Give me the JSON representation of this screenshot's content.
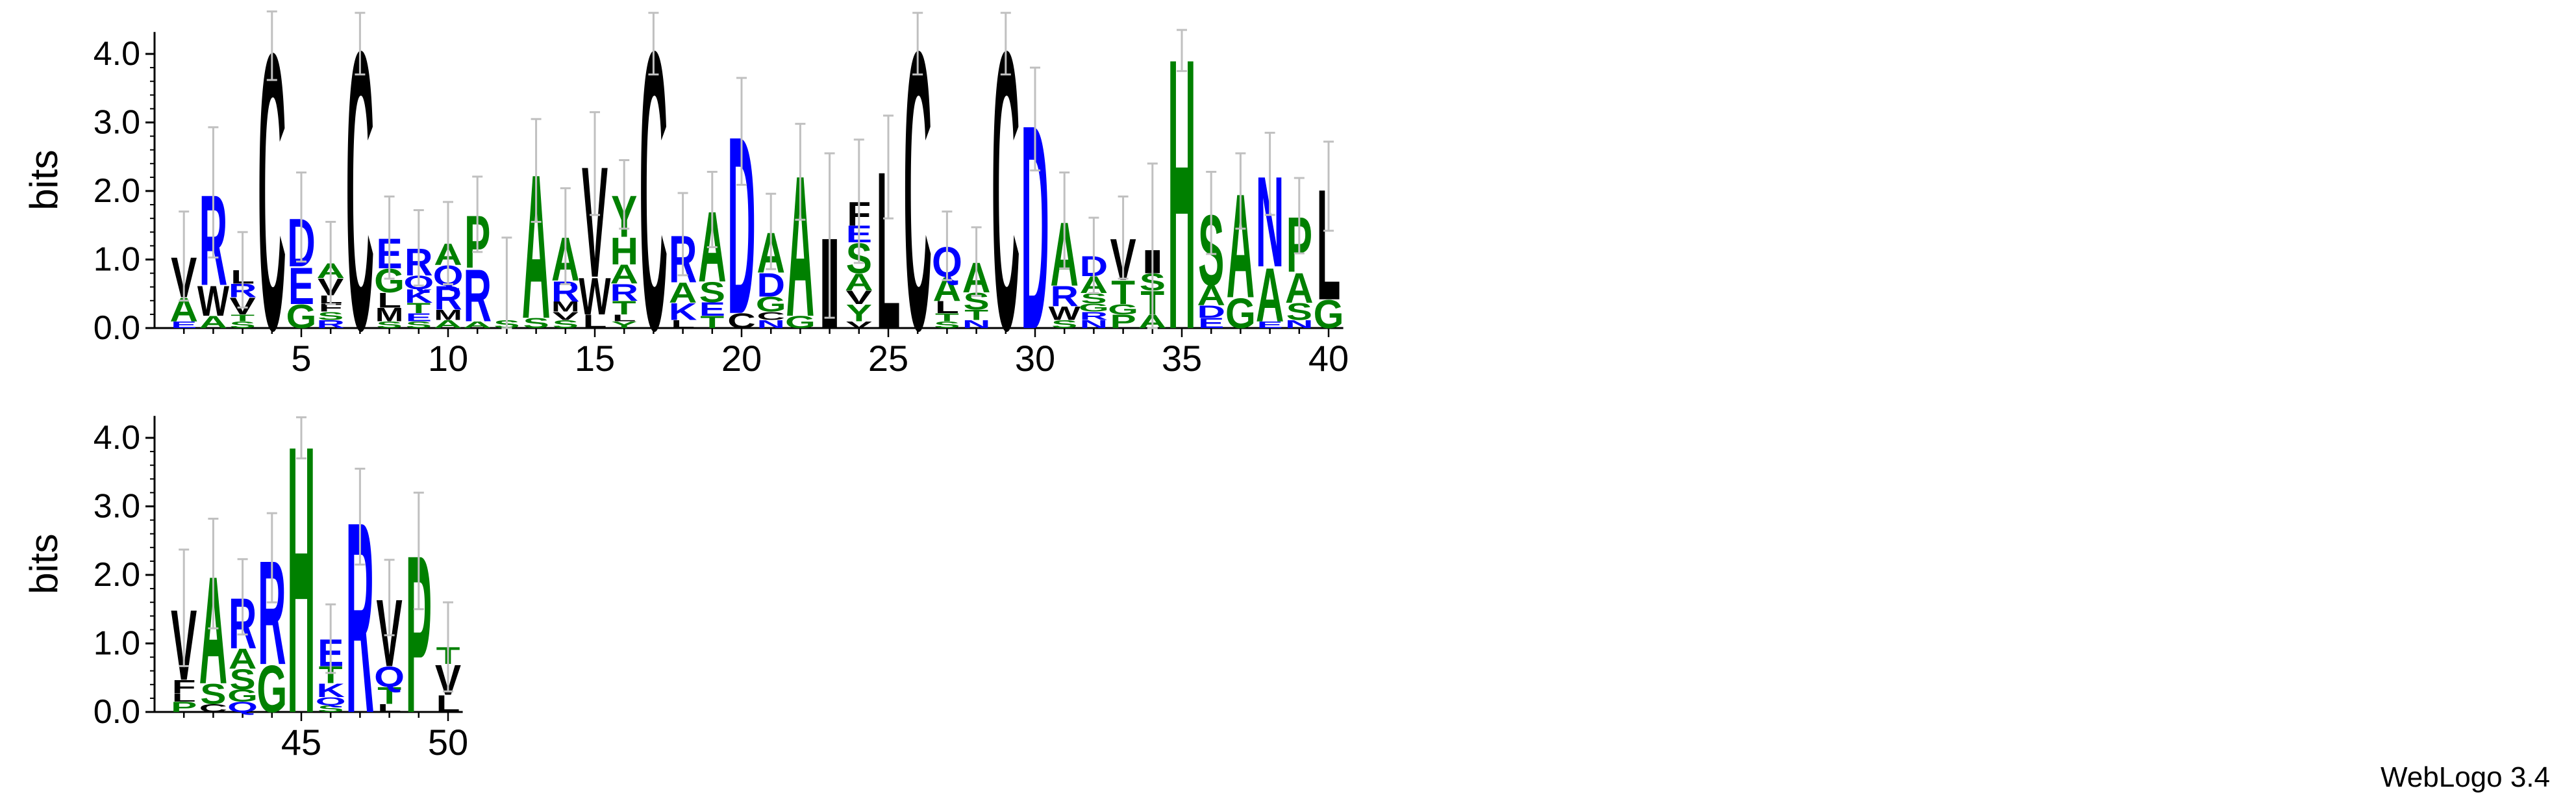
{
  "chart_data": {
    "type": "sequence_logo",
    "ylabel": "bits",
    "ylim": [
      0,
      4.32
    ],
    "yticks": [
      "0.0",
      "1.0",
      "2.0",
      "3.0",
      "4.0"
    ],
    "xticks_row1": [
      5,
      10,
      15,
      20,
      25,
      30,
      35,
      40
    ],
    "xticks_row2": [
      45,
      50
    ],
    "rows": [
      [
        1,
        40
      ],
      [
        41,
        50
      ]
    ],
    "colors": {
      "polar": "#008000",
      "basic": "#0000ff",
      "acidic": "#0000ff",
      "hydrophobic": "#000000",
      "neutral": "#000000"
    },
    "residue_colors": {
      "A": "#008000",
      "G": "#008000",
      "S": "#008000",
      "T": "#008000",
      "H": "#008000",
      "P": "#008000",
      "Y": "#008000",
      "R": "#0000ff",
      "K": "#0000ff",
      "D": "#0000ff",
      "E": "#0000ff",
      "Q": "#0000ff",
      "N": "#0000ff",
      "C": "#000000",
      "L": "#000000",
      "V": "#000000",
      "I": "#000000",
      "M": "#000000",
      "F": "#000000",
      "W": "#000000"
    },
    "positions": [
      {
        "pos": 1,
        "err": 0.65,
        "letters": [
          {
            "aa": "E",
            "h": 0.1
          },
          {
            "aa": "A",
            "h": 0.35
          },
          {
            "aa": "V",
            "h": 0.6
          }
        ]
      },
      {
        "pos": 2,
        "err": 0.95,
        "letters": [
          {
            "aa": "A",
            "h": 0.18
          },
          {
            "aa": "W",
            "h": 0.45
          },
          {
            "aa": "R",
            "h": 1.35
          }
        ]
      },
      {
        "pos": 3,
        "err": 0.55,
        "letters": [
          {
            "aa": "S",
            "h": 0.1
          },
          {
            "aa": "T",
            "h": 0.1
          },
          {
            "aa": "V",
            "h": 0.25
          },
          {
            "aa": "R",
            "h": 0.2
          },
          {
            "aa": "L",
            "h": 0.2
          }
        ]
      },
      {
        "pos": 4,
        "err": 0.5,
        "letters": [
          {
            "aa": "C",
            "h": 4.12
          }
        ]
      },
      {
        "pos": 5,
        "err": 0.65,
        "letters": [
          {
            "aa": "G",
            "h": 0.35
          },
          {
            "aa": "E",
            "h": 0.55
          },
          {
            "aa": "D",
            "h": 0.72
          }
        ]
      },
      {
        "pos": 6,
        "err": 0.6,
        "letters": [
          {
            "aa": "R",
            "h": 0.12
          },
          {
            "aa": "S",
            "h": 0.12
          },
          {
            "aa": "F",
            "h": 0.12
          },
          {
            "aa": "L",
            "h": 0.12
          },
          {
            "aa": "V",
            "h": 0.25
          },
          {
            "aa": "A",
            "h": 0.22
          }
        ]
      },
      {
        "pos": 7,
        "err": 0.45,
        "letters": [
          {
            "aa": "C",
            "h": 4.15
          }
        ]
      },
      {
        "pos": 8,
        "err": 0.6,
        "letters": [
          {
            "aa": "S",
            "h": 0.1
          },
          {
            "aa": "M",
            "h": 0.2
          },
          {
            "aa": "L",
            "h": 0.22
          },
          {
            "aa": "G",
            "h": 0.35
          },
          {
            "aa": "E",
            "h": 0.45
          }
        ]
      },
      {
        "pos": 9,
        "err": 0.55,
        "letters": [
          {
            "aa": "S",
            "h": 0.1
          },
          {
            "aa": "E",
            "h": 0.12
          },
          {
            "aa": "T",
            "h": 0.15
          },
          {
            "aa": "K",
            "h": 0.2
          },
          {
            "aa": "Q",
            "h": 0.2
          },
          {
            "aa": "R",
            "h": 0.4
          }
        ]
      },
      {
        "pos": 10,
        "err": 0.6,
        "letters": [
          {
            "aa": "A",
            "h": 0.12
          },
          {
            "aa": "M",
            "h": 0.15
          },
          {
            "aa": "R",
            "h": 0.35
          },
          {
            "aa": "Q",
            "h": 0.3
          },
          {
            "aa": "A",
            "h": 0.32
          }
        ]
      },
      {
        "pos": 11,
        "err": 0.55,
        "letters": [
          {
            "aa": "A",
            "h": 0.1
          },
          {
            "aa": "R",
            "h": 0.78
          },
          {
            "aa": "P",
            "h": 0.78
          }
        ]
      },
      {
        "pos": 12,
        "err": 1.2,
        "letters": [
          {
            "aa": "S",
            "h": 0.12
          }
        ]
      },
      {
        "pos": 13,
        "err": 0.75,
        "letters": [
          {
            "aa": "S",
            "h": 0.15
          },
          {
            "aa": "A",
            "h": 2.15
          }
        ]
      },
      {
        "pos": 14,
        "err": 0.7,
        "letters": [
          {
            "aa": "S",
            "h": 0.12
          },
          {
            "aa": "V",
            "h": 0.12
          },
          {
            "aa": "M",
            "h": 0.15
          },
          {
            "aa": "R",
            "h": 0.3
          },
          {
            "aa": "A",
            "h": 0.65
          }
        ]
      },
      {
        "pos": 15,
        "err": 0.75,
        "letters": [
          {
            "aa": "L",
            "h": 0.2
          },
          {
            "aa": "W",
            "h": 0.55
          },
          {
            "aa": "V",
            "h": 1.65
          }
        ]
      },
      {
        "pos": 16,
        "err": 0.5,
        "letters": [
          {
            "aa": "Y",
            "h": 0.1
          },
          {
            "aa": "L",
            "h": 0.1
          },
          {
            "aa": "T",
            "h": 0.2
          },
          {
            "aa": "R",
            "h": 0.25
          },
          {
            "aa": "A",
            "h": 0.28
          },
          {
            "aa": "H",
            "h": 0.4
          },
          {
            "aa": "Y",
            "h": 0.62
          }
        ]
      },
      {
        "pos": 17,
        "err": 0.45,
        "letters": [
          {
            "aa": "C",
            "h": 4.15
          }
        ]
      },
      {
        "pos": 18,
        "err": 0.6,
        "letters": [
          {
            "aa": "L",
            "h": 0.12
          },
          {
            "aa": "K",
            "h": 0.25
          },
          {
            "aa": "A",
            "h": 0.3
          },
          {
            "aa": "R",
            "h": 0.7
          }
        ]
      },
      {
        "pos": 19,
        "err": 0.55,
        "letters": [
          {
            "aa": "T",
            "h": 0.18
          },
          {
            "aa": "E",
            "h": 0.2
          },
          {
            "aa": "S",
            "h": 0.3
          },
          {
            "aa": "A",
            "h": 1.05
          }
        ]
      },
      {
        "pos": 20,
        "err": 0.78,
        "letters": [
          {
            "aa": "C",
            "h": 0.22
          },
          {
            "aa": "D",
            "h": 2.65
          }
        ]
      },
      {
        "pos": 21,
        "err": 0.55,
        "letters": [
          {
            "aa": "N",
            "h": 0.12
          },
          {
            "aa": "C",
            "h": 0.12
          },
          {
            "aa": "G",
            "h": 0.22
          },
          {
            "aa": "D",
            "h": 0.35
          },
          {
            "aa": "A",
            "h": 0.6
          }
        ]
      },
      {
        "pos": 22,
        "err": 0.7,
        "letters": [
          {
            "aa": "G",
            "h": 0.18
          },
          {
            "aa": "A",
            "h": 2.1
          }
        ]
      },
      {
        "pos": 23,
        "err": 1.2,
        "letters": [
          {
            "aa": "I",
            "h": 1.35
          }
        ]
      },
      {
        "pos": 24,
        "err": 0.9,
        "letters": [
          {
            "aa": "V",
            "h": 0.1
          },
          {
            "aa": "Y",
            "h": 0.25
          },
          {
            "aa": "V",
            "h": 0.2
          },
          {
            "aa": "A",
            "h": 0.25
          },
          {
            "aa": "S",
            "h": 0.45
          },
          {
            "aa": "E",
            "h": 0.25
          },
          {
            "aa": "F",
            "h": 0.35
          }
        ]
      },
      {
        "pos": 25,
        "err": 0.75,
        "letters": [
          {
            "aa": "L",
            "h": 2.35
          }
        ]
      },
      {
        "pos": 26,
        "err": 0.45,
        "letters": [
          {
            "aa": "C",
            "h": 4.15
          }
        ]
      },
      {
        "pos": 27,
        "err": 0.5,
        "letters": [
          {
            "aa": "S",
            "h": 0.1
          },
          {
            "aa": "T",
            "h": 0.12
          },
          {
            "aa": "L",
            "h": 0.18
          },
          {
            "aa": "A",
            "h": 0.35
          },
          {
            "aa": "Q",
            "h": 0.45
          }
        ]
      },
      {
        "pos": 28,
        "err": 0.5,
        "letters": [
          {
            "aa": "N",
            "h": 0.12
          },
          {
            "aa": "T",
            "h": 0.15
          },
          {
            "aa": "S",
            "h": 0.25
          },
          {
            "aa": "A",
            "h": 0.45
          }
        ]
      },
      {
        "pos": 29,
        "err": 0.45,
        "letters": [
          {
            "aa": "C",
            "h": 4.15
          }
        ]
      },
      {
        "pos": 30,
        "err": 0.75,
        "letters": [
          {
            "aa": "D",
            "h": 3.05
          }
        ]
      },
      {
        "pos": 31,
        "err": 0.7,
        "letters": [
          {
            "aa": "S",
            "h": 0.12
          },
          {
            "aa": "W",
            "h": 0.2
          },
          {
            "aa": "R",
            "h": 0.3
          },
          {
            "aa": "A",
            "h": 0.95
          }
        ]
      },
      {
        "pos": 32,
        "err": 0.55,
        "letters": [
          {
            "aa": "N",
            "h": 0.12
          },
          {
            "aa": "R",
            "h": 0.12
          },
          {
            "aa": "G",
            "h": 0.12
          },
          {
            "aa": "S",
            "h": 0.15
          },
          {
            "aa": "A",
            "h": 0.25
          },
          {
            "aa": "D",
            "h": 0.3
          }
        ]
      },
      {
        "pos": 33,
        "err": 0.6,
        "letters": [
          {
            "aa": "P",
            "h": 0.2
          },
          {
            "aa": "G",
            "h": 0.15
          },
          {
            "aa": "T",
            "h": 0.35
          },
          {
            "aa": "V",
            "h": 0.62
          }
        ]
      },
      {
        "pos": 34,
        "err": 1.25,
        "letters": [
          {
            "aa": "A",
            "h": 0.2
          },
          {
            "aa": "T",
            "h": 0.35
          },
          {
            "aa": "S",
            "h": 0.25
          },
          {
            "aa": "I",
            "h": 0.35
          }
        ]
      },
      {
        "pos": 35,
        "err": 0.3,
        "letters": [
          {
            "aa": "H",
            "h": 4.05
          }
        ]
      },
      {
        "pos": 36,
        "err": 0.6,
        "letters": [
          {
            "aa": "E",
            "h": 0.15
          },
          {
            "aa": "D",
            "h": 0.18
          },
          {
            "aa": "A",
            "h": 0.3
          },
          {
            "aa": "S",
            "h": 1.05
          }
        ]
      },
      {
        "pos": 37,
        "err": 0.55,
        "letters": [
          {
            "aa": "G",
            "h": 0.45
          },
          {
            "aa": "A",
            "h": 1.55
          }
        ]
      },
      {
        "pos": 38,
        "err": 0.6,
        "letters": [
          {
            "aa": "E",
            "h": 0.1
          },
          {
            "aa": "A",
            "h": 0.8
          },
          {
            "aa": "N",
            "h": 1.35
          }
        ]
      },
      {
        "pos": 39,
        "err": 0.55,
        "letters": [
          {
            "aa": "N",
            "h": 0.12
          },
          {
            "aa": "S",
            "h": 0.25
          },
          {
            "aa": "A",
            "h": 0.45
          },
          {
            "aa": "P",
            "h": 0.82
          }
        ]
      },
      {
        "pos": 40,
        "err": 0.65,
        "letters": [
          {
            "aa": "G",
            "h": 0.42
          },
          {
            "aa": "L",
            "h": 1.65
          }
        ]
      },
      {
        "pos": 41,
        "err": 0.85,
        "letters": [
          {
            "aa": "P",
            "h": 0.15
          },
          {
            "aa": "L",
            "h": 0.12
          },
          {
            "aa": "F",
            "h": 0.2
          },
          {
            "aa": "V",
            "h": 1.05
          }
        ]
      },
      {
        "pos": 42,
        "err": 0.8,
        "letters": [
          {
            "aa": "C",
            "h": 0.12
          },
          {
            "aa": "S",
            "h": 0.3
          },
          {
            "aa": "A",
            "h": 1.6
          }
        ]
      },
      {
        "pos": 43,
        "err": 0.55,
        "letters": [
          {
            "aa": "Q",
            "h": 0.15
          },
          {
            "aa": "G",
            "h": 0.18
          },
          {
            "aa": "S",
            "h": 0.3
          },
          {
            "aa": "A",
            "h": 0.3
          },
          {
            "aa": "R",
            "h": 0.75
          }
        ]
      },
      {
        "pos": 44,
        "err": 0.65,
        "letters": [
          {
            "aa": "G",
            "h": 0.7
          },
          {
            "aa": "R",
            "h": 1.55
          }
        ]
      },
      {
        "pos": 45,
        "err": 0.3,
        "letters": [
          {
            "aa": "H",
            "h": 4.0
          }
        ]
      },
      {
        "pos": 46,
        "err": 0.5,
        "letters": [
          {
            "aa": "S",
            "h": 0.1
          },
          {
            "aa": "Q",
            "h": 0.12
          },
          {
            "aa": "K",
            "h": 0.2
          },
          {
            "aa": "T",
            "h": 0.25
          },
          {
            "aa": "E",
            "h": 0.4
          }
        ]
      },
      {
        "pos": 47,
        "err": 0.7,
        "letters": [
          {
            "aa": "R",
            "h": 2.85
          }
        ]
      },
      {
        "pos": 48,
        "err": 0.55,
        "letters": [
          {
            "aa": "L",
            "h": 0.12
          },
          {
            "aa": "T",
            "h": 0.25
          },
          {
            "aa": "Q",
            "h": 0.3
          },
          {
            "aa": "V",
            "h": 1.0
          }
        ]
      },
      {
        "pos": 49,
        "err": 0.85,
        "letters": [
          {
            "aa": "P",
            "h": 2.35
          }
        ]
      },
      {
        "pos": 50,
        "err": 0.65,
        "letters": [
          {
            "aa": "L",
            "h": 0.25
          },
          {
            "aa": "V",
            "h": 0.45
          },
          {
            "aa": "T",
            "h": 0.25
          }
        ]
      }
    ]
  },
  "credit": "WebLogo 3.4"
}
